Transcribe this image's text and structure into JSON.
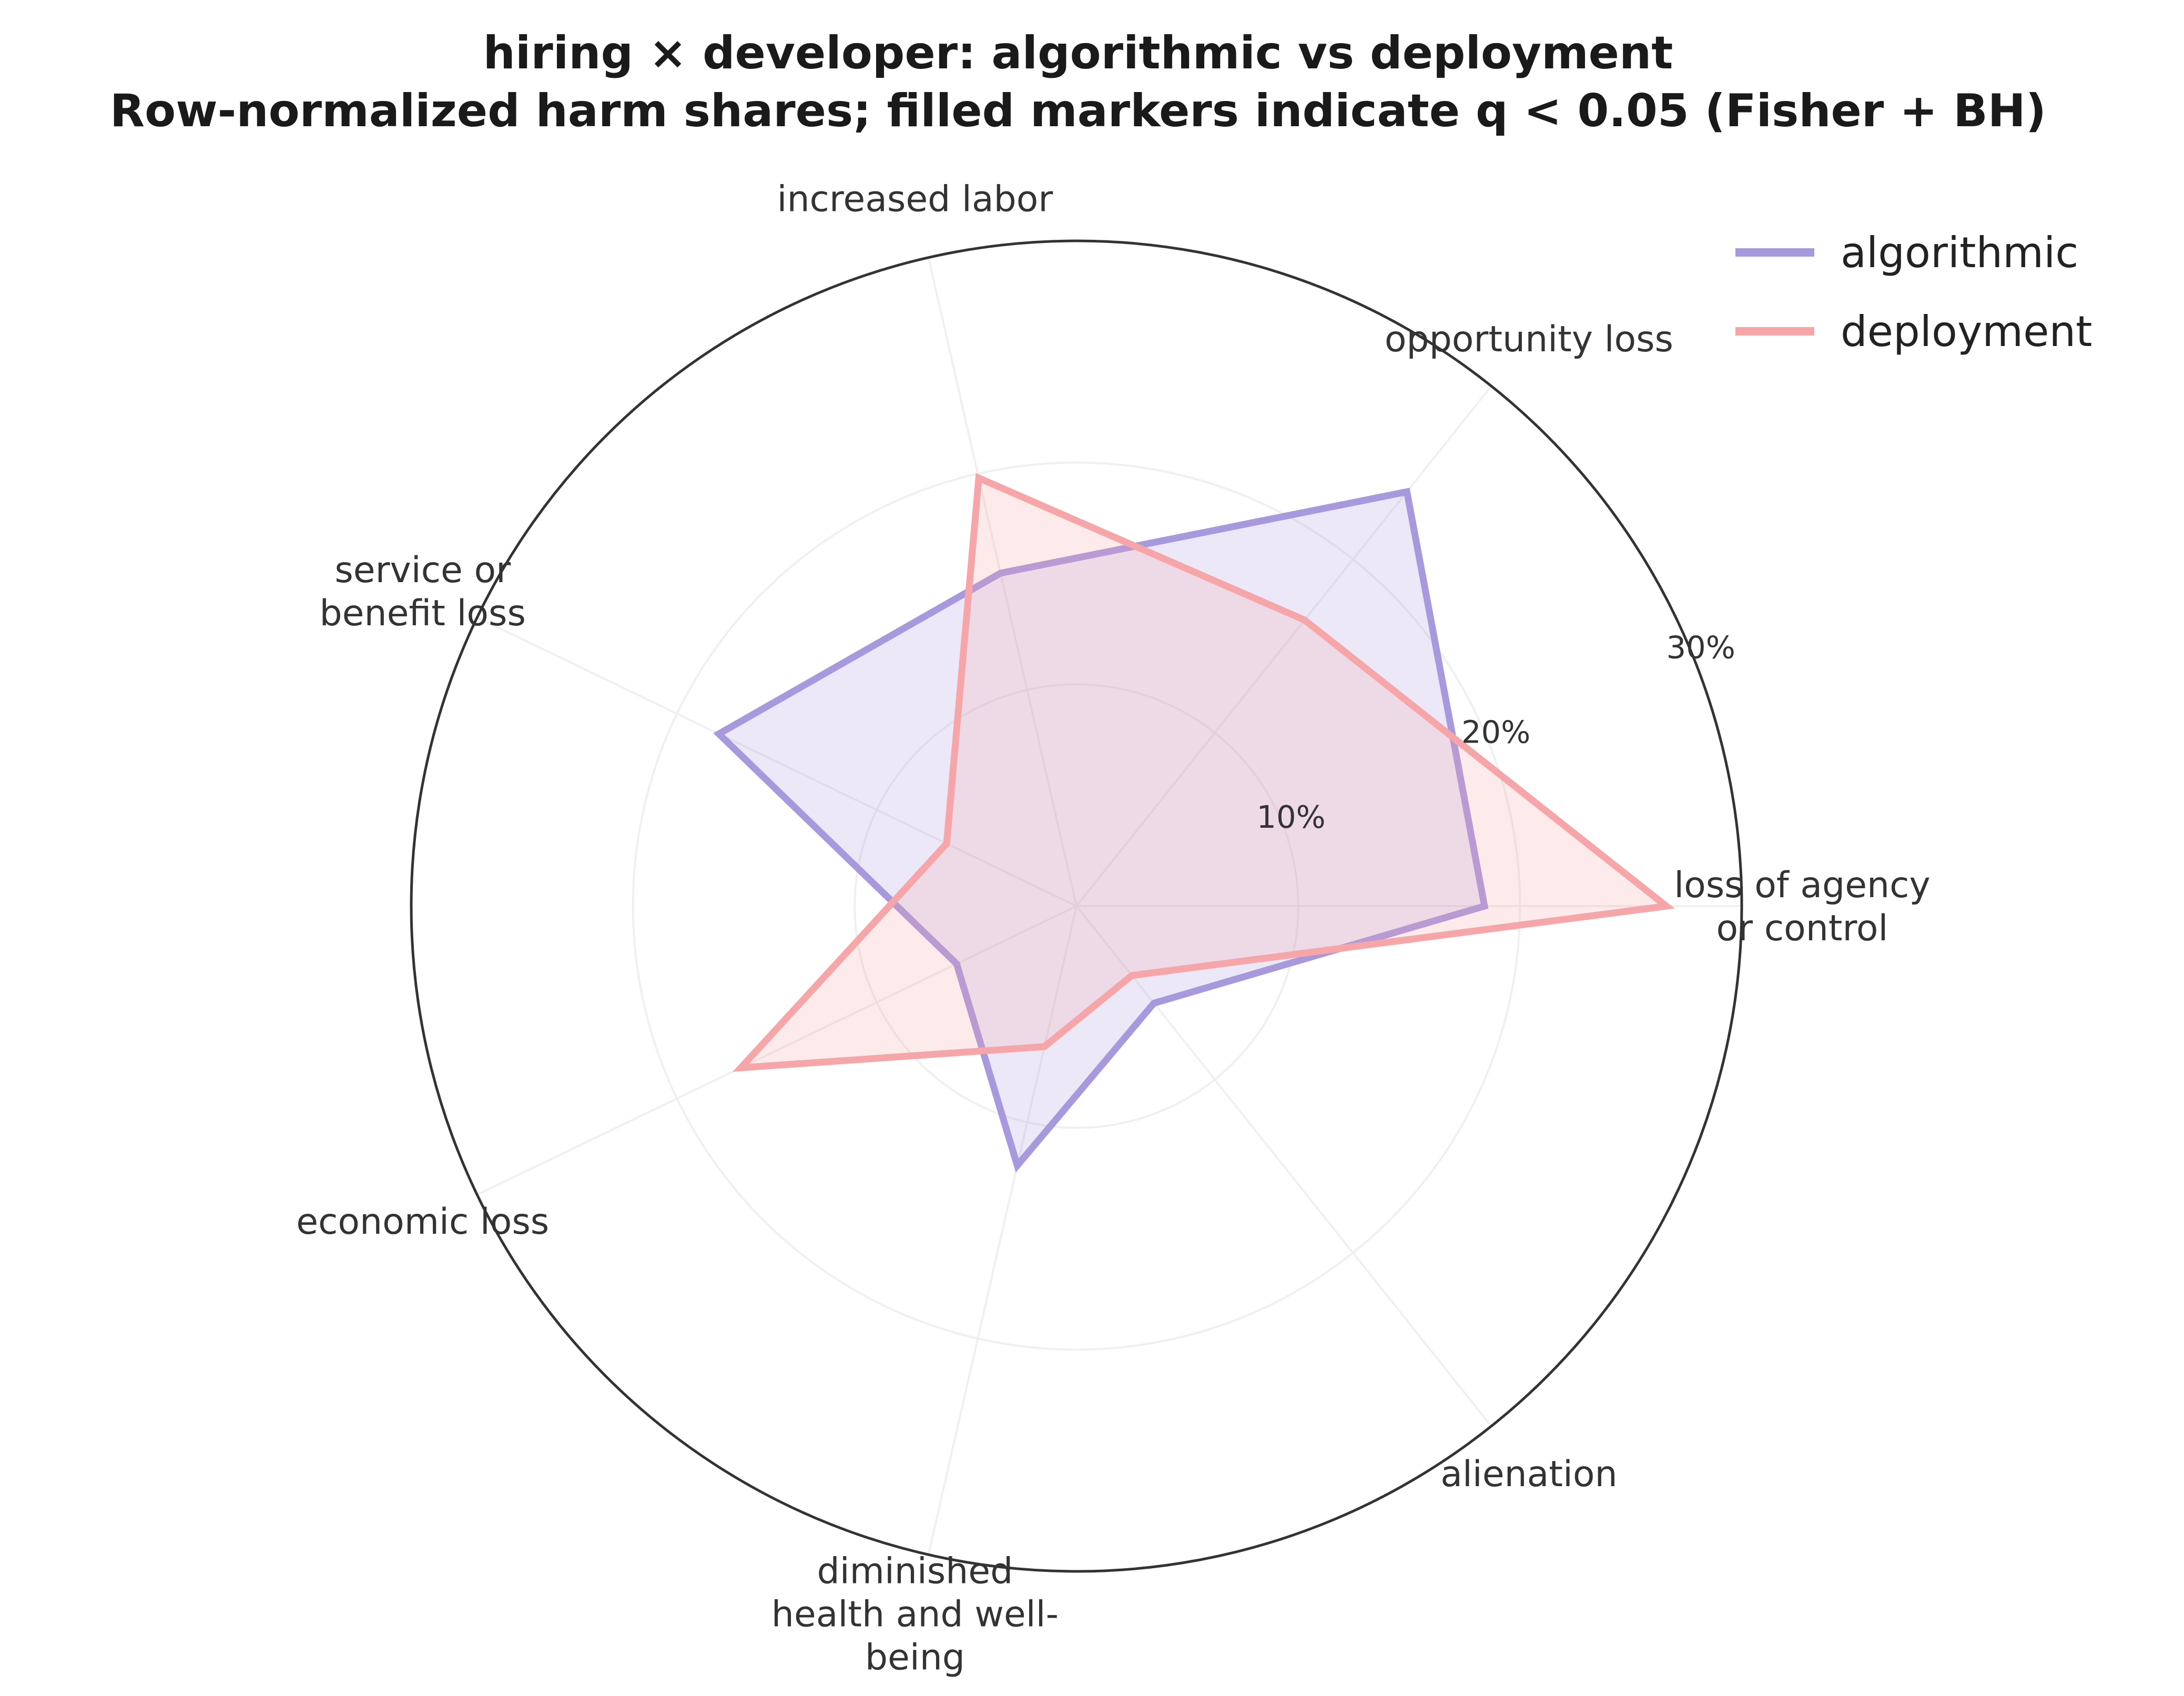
{
  "title_lines": [
    "hiring × developer: algorithmic vs deployment",
    "Row-normalized harm shares; filled markers indicate q < 0.05 (Fisher + BH)"
  ],
  "chart_data": {
    "type": "radar",
    "categories": [
      [
        "loss of agency",
        "or control"
      ],
      [
        "opportunity loss"
      ],
      [
        "increased labor"
      ],
      [
        "service or",
        "benefit loss"
      ],
      [
        "economic loss"
      ],
      [
        "diminished",
        "health and well-",
        "being"
      ],
      [
        "alienation"
      ]
    ],
    "r_ticks": [
      10,
      20,
      30
    ],
    "r_tick_labels": [
      "10%",
      "20%",
      "30%"
    ],
    "r_max": 30,
    "series": [
      {
        "name": "algorithmic",
        "color": "#a898de",
        "values": [
          18.4,
          23.9,
          15.4,
          17.9,
          6.0,
          12.0,
          5.6
        ]
      },
      {
        "name": "deployment",
        "color": "#f6a5a8",
        "values": [
          26.6,
          16.5,
          19.8,
          6.5,
          16.8,
          6.5,
          4.0
        ]
      }
    ],
    "legend_position": "top-right",
    "grid": true
  }
}
